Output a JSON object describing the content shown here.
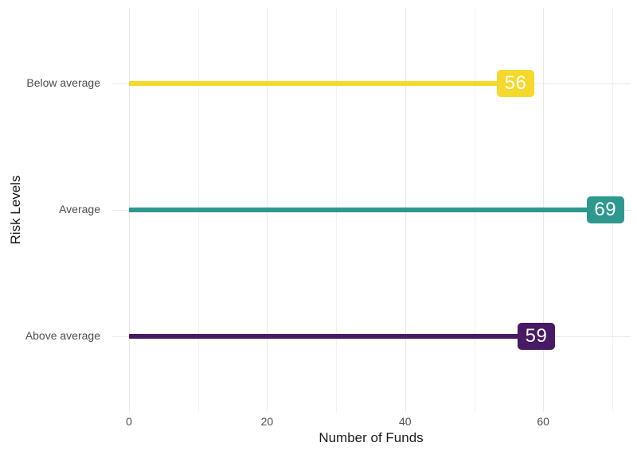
{
  "chart_data": {
    "type": "bar",
    "style": "lollipop-with-end-labels",
    "orientation": "horizontal",
    "title": "",
    "xlabel": "Number of Funds",
    "ylabel": "Risk Levels",
    "categories": [
      "Below average",
      "Average",
      "Above average"
    ],
    "values": [
      56,
      69,
      59
    ],
    "value_labels": [
      "56",
      "69",
      "59"
    ],
    "bar_colors": [
      "#F4D82C",
      "#2E988E",
      "#471A63"
    ],
    "value_label_text_color": "#ffffff",
    "x_ticks": [
      0,
      20,
      40,
      60
    ],
    "x_minor_gridlines": [
      10,
      30,
      50,
      70
    ],
    "xlim": [
      -2.5,
      72.5
    ],
    "grid": "on",
    "legend": "none",
    "background_color": "#ffffff",
    "grid_major_color": "#e9e9e9",
    "grid_minor_color": "#f2f2f2",
    "axis_text_color": "#4d4d4d",
    "axis_title_color": "#1a1a1a"
  }
}
